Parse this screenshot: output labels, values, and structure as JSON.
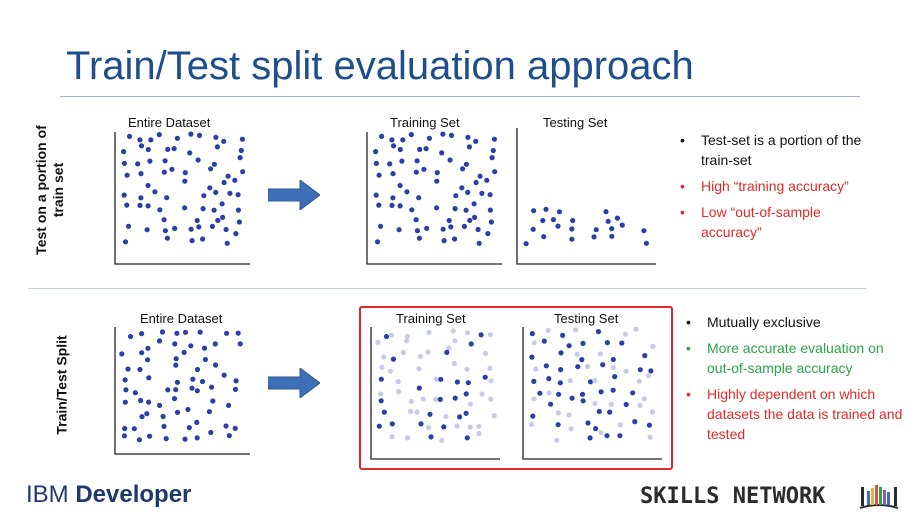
{
  "title": "Train/Test split evaluation approach",
  "colors": {
    "title": "#1f4e8c",
    "point": "#2a3fa8",
    "faded_point": "#c8cbe6",
    "arrow": "#3c6fb6",
    "highlight": "#e02a2a",
    "green": "#2aa547",
    "red": "#e02a2a"
  },
  "row1": {
    "side_label_line1": "Test on a portion of",
    "side_label_line2": "train set",
    "entire_label": "Entire Dataset",
    "training_label": "Training Set",
    "testing_label": "Testing Set",
    "bullets": [
      {
        "text": "Test-set is a portion of the train-set",
        "color": "black"
      },
      {
        "text": "High “training accuracy”",
        "color": "red"
      },
      {
        "text": " Low “out-of-sample accuracy”",
        "color": "red"
      }
    ]
  },
  "row2": {
    "side_label": "Train/Test Split",
    "entire_label": "Entire Dataset",
    "training_label": "Training Set",
    "testing_label": "Testing Set",
    "bullets": [
      {
        "text": "Mutually exclusive",
        "color": "black"
      },
      {
        "text": "More accurate evaluation on out-of-sample accuracy",
        "color": "green"
      },
      {
        "text": "Highly dependent on which datasets the data is trained and tested",
        "color": "red"
      }
    ]
  },
  "footer": {
    "brand_left_1": "IBM",
    "brand_left_2": "Developer",
    "brand_right": "SKILLS NETWORK",
    "logo_icon": "books-icon"
  }
}
